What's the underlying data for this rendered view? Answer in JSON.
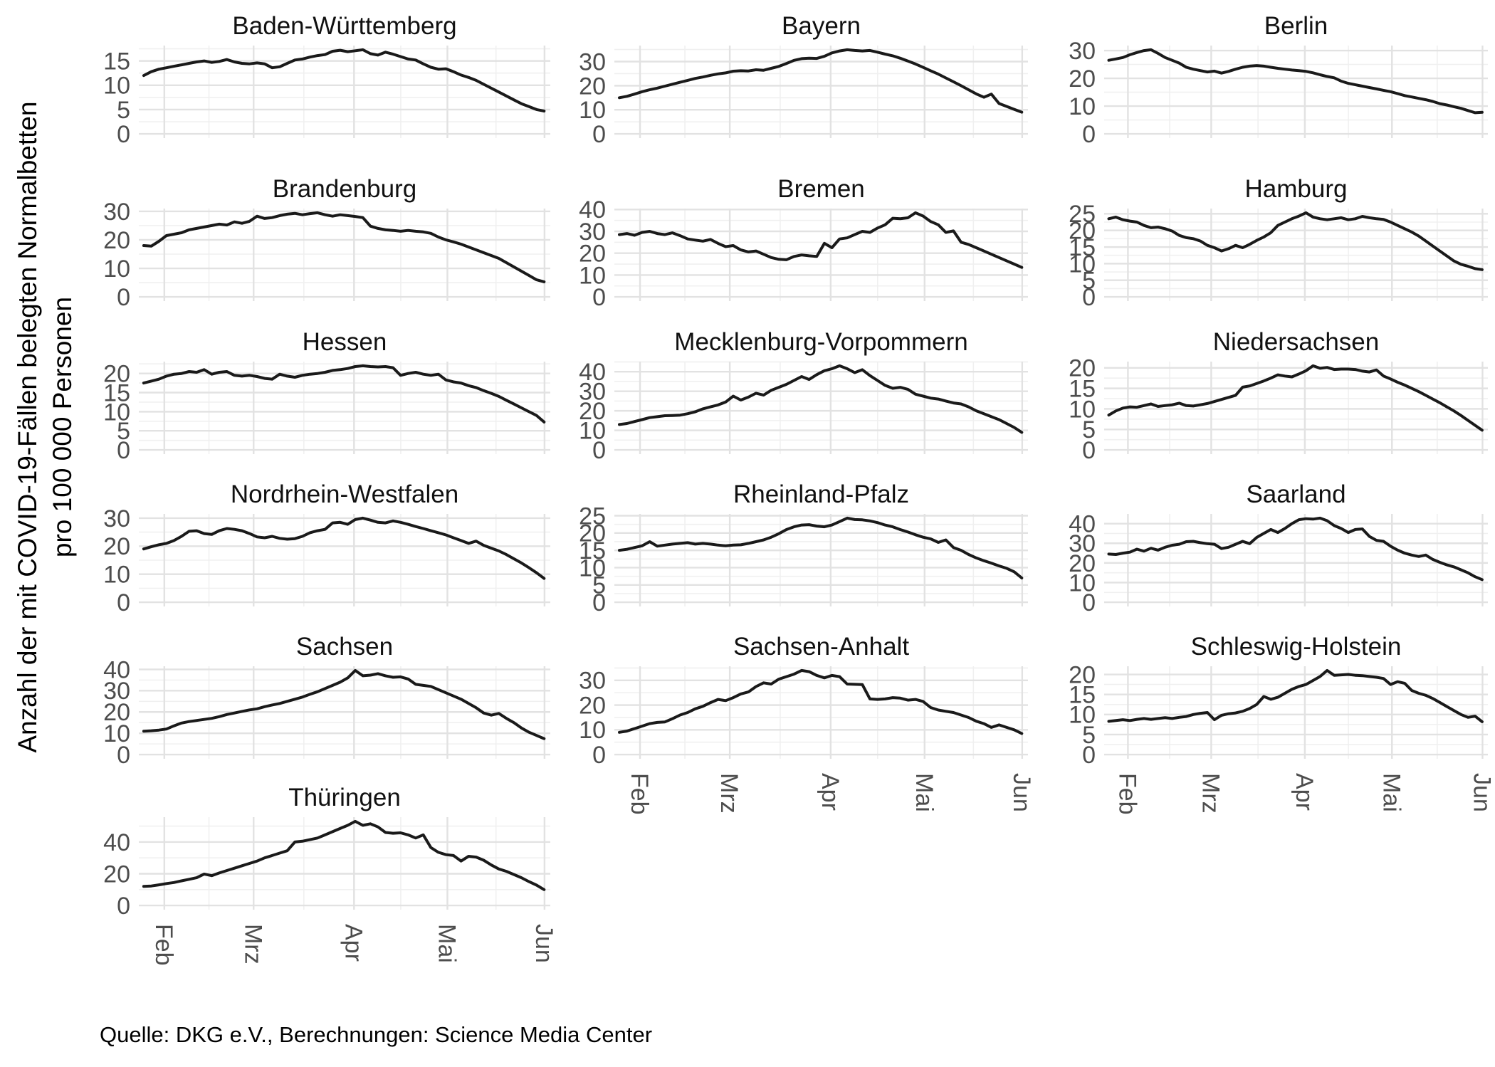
{
  "y_axis_label_line1": "Anzahl der mit COVID-19-Fällen belegten Normalbetten",
  "y_axis_label_line2": "pro 100 000 Personen",
  "caption": "Quelle: DKG e.V., Berechnungen: Science Media Center",
  "colors": {
    "line": "#1a1a1a",
    "grid_major": "#e2e2e2",
    "grid_minor": "#f0f0f0",
    "tick_text": "#4d4d4d",
    "title_text": "#111111",
    "background": "#ffffff"
  },
  "chart_data": {
    "type": "line",
    "title": "",
    "xlabel": "",
    "ylabel": "Anzahl der mit COVID-19-Fällen belegten Normalbetten pro 100 000 Personen",
    "x_tick_labels": [
      "Feb",
      "Mrz",
      "Apr",
      "Mai",
      "Jun"
    ],
    "grid": true,
    "legend": "none",
    "facets": [
      {
        "title": "Baden-Württemberg",
        "col": 0,
        "row": 0,
        "y_ticks": [
          0,
          5,
          10,
          15
        ],
        "show_x_axis": false,
        "values": [
          12.0,
          12.8,
          13.3,
          13.6,
          13.9,
          14.2,
          14.5,
          14.8,
          15.0,
          14.7,
          14.9,
          15.3,
          14.8,
          14.5,
          14.4,
          14.6,
          14.4,
          13.6,
          13.8,
          14.5,
          15.2,
          15.4,
          15.8,
          16.1,
          16.3,
          17.0,
          17.2,
          16.9,
          17.1,
          17.3,
          16.5,
          16.2,
          16.8,
          16.4,
          15.9,
          15.4,
          15.2,
          14.4,
          13.7,
          13.3,
          13.4,
          12.8,
          12.1,
          11.6,
          11.0,
          10.2,
          9.4,
          8.6,
          7.8,
          7.0,
          6.2,
          5.6,
          5.0,
          4.7
        ]
      },
      {
        "title": "Bayern",
        "col": 1,
        "row": 0,
        "y_ticks": [
          0,
          10,
          20,
          30
        ],
        "show_x_axis": false,
        "values": [
          15.0,
          15.6,
          16.5,
          17.5,
          18.3,
          19.0,
          19.8,
          20.6,
          21.4,
          22.2,
          23.0,
          23.6,
          24.3,
          24.9,
          25.3,
          26.0,
          26.2,
          26.1,
          26.6,
          26.4,
          27.2,
          28.0,
          29.2,
          30.5,
          31.2,
          31.4,
          31.3,
          32.2,
          33.6,
          34.4,
          34.9,
          34.6,
          34.4,
          34.6,
          33.9,
          33.1,
          32.4,
          31.4,
          30.2,
          29.0,
          27.6,
          26.2,
          24.8,
          23.2,
          21.6,
          20.0,
          18.3,
          16.6,
          15.2,
          16.5,
          12.6,
          11.4,
          10.2,
          9.0
        ]
      },
      {
        "title": "Berlin",
        "col": 2,
        "row": 0,
        "y_ticks": [
          0,
          10,
          20,
          30
        ],
        "show_x_axis": false,
        "values": [
          26.5,
          27.0,
          27.5,
          28.5,
          29.3,
          30.0,
          30.3,
          29.0,
          27.5,
          26.5,
          25.5,
          24.0,
          23.3,
          22.8,
          22.3,
          22.6,
          21.9,
          22.5,
          23.3,
          24.0,
          24.4,
          24.6,
          24.4,
          24.0,
          23.6,
          23.3,
          23.0,
          22.8,
          22.5,
          22.0,
          21.3,
          20.7,
          20.2,
          19.0,
          18.2,
          17.7,
          17.2,
          16.7,
          16.2,
          15.7,
          15.2,
          14.5,
          13.8,
          13.3,
          12.8,
          12.3,
          11.7,
          10.9,
          10.4,
          9.8,
          9.2,
          8.4,
          7.6,
          7.8
        ]
      },
      {
        "title": "Brandenburg",
        "col": 0,
        "row": 1,
        "y_ticks": [
          0,
          10,
          20,
          30
        ],
        "show_x_axis": false,
        "values": [
          18.0,
          17.8,
          19.5,
          21.5,
          22.0,
          22.5,
          23.5,
          24.0,
          24.5,
          25.0,
          25.5,
          25.2,
          26.3,
          25.8,
          26.5,
          28.3,
          27.5,
          27.8,
          28.5,
          29.0,
          29.3,
          28.8,
          29.2,
          29.5,
          28.8,
          28.3,
          28.8,
          28.5,
          28.2,
          27.8,
          24.8,
          24.0,
          23.5,
          23.3,
          23.0,
          23.3,
          23.0,
          22.8,
          22.3,
          21.0,
          20.0,
          19.3,
          18.5,
          17.5,
          16.5,
          15.5,
          14.5,
          13.5,
          12.0,
          10.5,
          9.0,
          7.5,
          6.0,
          5.3
        ]
      },
      {
        "title": "Bremen",
        "col": 1,
        "row": 1,
        "y_ticks": [
          0,
          10,
          20,
          30,
          40
        ],
        "show_x_axis": false,
        "values": [
          28.5,
          29.0,
          28.2,
          29.5,
          30.0,
          29.0,
          28.5,
          29.3,
          28.0,
          26.5,
          26.0,
          25.5,
          26.3,
          24.5,
          23.0,
          23.5,
          21.5,
          20.6,
          21.0,
          19.5,
          18.0,
          17.2,
          17.0,
          18.5,
          19.2,
          18.8,
          18.5,
          24.5,
          22.5,
          26.5,
          27.0,
          28.5,
          30.0,
          29.5,
          31.5,
          33.0,
          36.0,
          35.8,
          36.2,
          38.5,
          37.0,
          34.5,
          33.0,
          29.5,
          30.2,
          25.0,
          24.0,
          22.5,
          21.0,
          19.5,
          18.0,
          16.5,
          15.0,
          13.5
        ]
      },
      {
        "title": "Hamburg",
        "col": 2,
        "row": 1,
        "y_ticks": [
          0,
          5,
          10,
          15,
          20,
          25
        ],
        "show_x_axis": false,
        "values": [
          23.5,
          24.0,
          23.2,
          22.8,
          22.5,
          21.5,
          20.8,
          21.0,
          20.5,
          19.8,
          18.5,
          17.8,
          17.5,
          16.8,
          15.5,
          14.8,
          13.8,
          14.5,
          15.5,
          14.8,
          15.8,
          17.0,
          18.0,
          19.3,
          21.5,
          22.5,
          23.5,
          24.3,
          25.3,
          24.0,
          23.5,
          23.2,
          23.5,
          23.8,
          23.2,
          23.5,
          24.2,
          23.8,
          23.5,
          23.3,
          22.5,
          21.5,
          20.5,
          19.5,
          18.3,
          16.8,
          15.3,
          13.8,
          12.3,
          10.8,
          9.8,
          9.2,
          8.5,
          8.2
        ]
      },
      {
        "title": "Hessen",
        "col": 0,
        "row": 2,
        "y_ticks": [
          0,
          5,
          10,
          15,
          20
        ],
        "show_x_axis": false,
        "values": [
          17.5,
          18.0,
          18.5,
          19.3,
          19.8,
          20.0,
          20.5,
          20.3,
          21.0,
          19.8,
          20.3,
          20.5,
          19.5,
          19.3,
          19.5,
          19.2,
          18.7,
          18.5,
          19.8,
          19.3,
          19.0,
          19.5,
          19.8,
          20.0,
          20.3,
          20.8,
          21.0,
          21.3,
          21.8,
          22.0,
          21.8,
          21.7,
          21.8,
          21.5,
          19.5,
          20.0,
          20.3,
          19.8,
          19.5,
          19.8,
          18.3,
          17.8,
          17.5,
          16.8,
          16.3,
          15.5,
          14.8,
          14.0,
          13.0,
          12.0,
          11.0,
          10.0,
          9.0,
          7.3
        ]
      },
      {
        "title": "Mecklenburg-Vorpommern",
        "col": 1,
        "row": 2,
        "y_ticks": [
          0,
          10,
          20,
          30,
          40
        ],
        "show_x_axis": false,
        "values": [
          13.0,
          13.5,
          14.5,
          15.5,
          16.5,
          17.0,
          17.5,
          17.6,
          17.8,
          18.5,
          19.5,
          21.0,
          22.0,
          23.0,
          24.5,
          27.5,
          25.5,
          27.0,
          29.0,
          28.0,
          30.5,
          32.0,
          33.5,
          35.5,
          37.5,
          36.0,
          38.5,
          40.5,
          41.5,
          43.0,
          41.5,
          39.5,
          41.0,
          38.0,
          35.5,
          33.0,
          31.5,
          32.0,
          31.0,
          28.5,
          27.5,
          26.5,
          26.0,
          25.0,
          24.0,
          23.5,
          22.0,
          20.0,
          18.5,
          17.0,
          15.5,
          13.5,
          11.5,
          9.0
        ]
      },
      {
        "title": "Niedersachsen",
        "col": 2,
        "row": 2,
        "y_ticks": [
          0,
          5,
          10,
          15,
          20
        ],
        "show_x_axis": false,
        "values": [
          8.5,
          9.5,
          10.2,
          10.5,
          10.4,
          10.8,
          11.2,
          10.6,
          10.8,
          11.0,
          11.4,
          10.8,
          10.7,
          11.0,
          11.3,
          11.8,
          12.3,
          12.8,
          13.3,
          15.3,
          15.6,
          16.2,
          16.8,
          17.5,
          18.3,
          18.0,
          17.8,
          18.5,
          19.3,
          20.5,
          19.9,
          20.1,
          19.6,
          19.7,
          19.7,
          19.6,
          19.2,
          19.0,
          19.5,
          18.0,
          17.3,
          16.5,
          15.8,
          15.0,
          14.2,
          13.3,
          12.4,
          11.5,
          10.5,
          9.5,
          8.4,
          7.2,
          6.0,
          4.8
        ]
      },
      {
        "title": "Nordrhein-Westfalen",
        "col": 0,
        "row": 3,
        "y_ticks": [
          0,
          10,
          20,
          30
        ],
        "show_x_axis": false,
        "values": [
          19.0,
          19.8,
          20.5,
          21.0,
          22.0,
          23.5,
          25.3,
          25.5,
          24.5,
          24.2,
          25.5,
          26.3,
          26.0,
          25.5,
          24.5,
          23.3,
          23.0,
          23.5,
          22.8,
          22.5,
          22.7,
          23.5,
          24.8,
          25.5,
          26.0,
          28.3,
          28.5,
          27.8,
          29.5,
          30.0,
          29.3,
          28.5,
          28.3,
          29.0,
          28.5,
          27.8,
          27.0,
          26.3,
          25.5,
          24.8,
          24.0,
          23.0,
          22.0,
          21.0,
          21.8,
          20.3,
          19.3,
          18.3,
          17.0,
          15.5,
          14.0,
          12.3,
          10.5,
          8.5
        ]
      },
      {
        "title": "Rheinland-Pfalz",
        "col": 1,
        "row": 3,
        "y_ticks": [
          0,
          5,
          10,
          15,
          20,
          25
        ],
        "show_x_axis": false,
        "values": [
          15.0,
          15.3,
          15.8,
          16.3,
          17.5,
          16.2,
          16.5,
          16.8,
          17.0,
          17.2,
          16.8,
          17.0,
          16.8,
          16.5,
          16.3,
          16.5,
          16.6,
          17.0,
          17.5,
          18.0,
          18.8,
          19.8,
          21.0,
          21.8,
          22.3,
          22.4,
          22.0,
          21.8,
          22.3,
          23.3,
          24.3,
          23.9,
          23.8,
          23.5,
          23.0,
          22.3,
          21.8,
          21.0,
          20.3,
          19.5,
          18.8,
          18.3,
          17.3,
          18.0,
          15.8,
          15.0,
          13.8,
          12.8,
          12.0,
          11.3,
          10.5,
          9.8,
          8.8,
          7.0
        ]
      },
      {
        "title": "Saarland",
        "col": 2,
        "row": 3,
        "y_ticks": [
          0,
          10,
          20,
          30,
          40
        ],
        "show_x_axis": false,
        "values": [
          24.5,
          24.3,
          25.0,
          25.5,
          27.0,
          26.0,
          27.5,
          26.5,
          28.0,
          29.0,
          29.5,
          30.8,
          31.0,
          30.3,
          29.8,
          29.5,
          27.3,
          28.0,
          29.5,
          31.0,
          29.8,
          33.0,
          35.0,
          37.0,
          35.5,
          37.5,
          40.0,
          42.0,
          42.5,
          42.3,
          42.8,
          41.5,
          39.0,
          37.5,
          35.5,
          37.0,
          37.3,
          33.5,
          31.5,
          31.0,
          28.5,
          26.5,
          25.0,
          24.0,
          23.3,
          24.0,
          21.8,
          20.3,
          19.0,
          18.0,
          16.5,
          15.0,
          13.0,
          11.5
        ]
      },
      {
        "title": "Sachsen",
        "col": 0,
        "row": 4,
        "y_ticks": [
          0,
          10,
          20,
          30,
          40
        ],
        "show_x_axis": false,
        "values": [
          11.0,
          11.2,
          11.5,
          12.0,
          13.5,
          14.8,
          15.5,
          16.0,
          16.5,
          17.0,
          17.8,
          18.8,
          19.5,
          20.3,
          21.0,
          21.5,
          22.5,
          23.3,
          24.0,
          25.0,
          26.0,
          27.0,
          28.3,
          29.5,
          31.0,
          32.5,
          34.0,
          36.0,
          39.5,
          37.0,
          37.3,
          38.0,
          37.0,
          36.3,
          36.5,
          35.5,
          33.0,
          32.5,
          32.0,
          30.5,
          29.0,
          27.5,
          26.0,
          24.0,
          22.0,
          19.5,
          18.5,
          19.3,
          17.0,
          15.0,
          12.5,
          10.5,
          9.0,
          7.5
        ]
      },
      {
        "title": "Sachsen-Anhalt",
        "col": 1,
        "row": 4,
        "y_ticks": [
          0,
          10,
          20,
          30
        ],
        "show_x_axis": true,
        "values": [
          9.0,
          9.5,
          10.5,
          11.5,
          12.5,
          13.0,
          13.2,
          14.5,
          16.0,
          17.0,
          18.5,
          19.5,
          21.0,
          22.3,
          21.8,
          23.0,
          24.5,
          25.3,
          27.5,
          29.0,
          28.5,
          30.5,
          31.5,
          32.5,
          34.0,
          33.5,
          32.0,
          31.0,
          32.0,
          31.5,
          28.5,
          28.4,
          28.3,
          22.5,
          22.3,
          22.5,
          23.0,
          22.8,
          22.0,
          22.3,
          21.5,
          19.0,
          18.0,
          17.5,
          17.0,
          16.0,
          15.0,
          13.5,
          12.5,
          11.0,
          12.0,
          11.0,
          10.0,
          8.5
        ]
      },
      {
        "title": "Schleswig-Holstein",
        "col": 2,
        "row": 4,
        "y_ticks": [
          0,
          5,
          10,
          15,
          20
        ],
        "show_x_axis": true,
        "values": [
          8.3,
          8.5,
          8.7,
          8.5,
          8.8,
          9.0,
          8.8,
          9.0,
          9.2,
          9.0,
          9.3,
          9.5,
          10.0,
          10.3,
          10.5,
          8.7,
          9.8,
          10.2,
          10.4,
          10.8,
          11.5,
          12.5,
          14.5,
          13.8,
          14.3,
          15.3,
          16.3,
          17.0,
          17.5,
          18.5,
          19.5,
          21.0,
          19.8,
          19.9,
          20.0,
          19.8,
          19.7,
          19.5,
          19.3,
          19.0,
          17.5,
          18.2,
          17.8,
          16.0,
          15.3,
          14.8,
          14.0,
          13.0,
          12.0,
          11.0,
          10.0,
          9.3,
          9.6,
          8.2
        ]
      },
      {
        "title": "Thüringen",
        "col": 0,
        "row": 5,
        "y_ticks": [
          0,
          20,
          40
        ],
        "show_x_axis": true,
        "values": [
          12.0,
          12.3,
          13.0,
          13.8,
          14.5,
          15.5,
          16.5,
          17.5,
          19.8,
          18.8,
          20.5,
          22.0,
          23.5,
          25.0,
          26.5,
          28.0,
          30.0,
          31.5,
          33.0,
          34.5,
          40.0,
          40.5,
          41.5,
          42.5,
          44.5,
          46.5,
          48.5,
          50.5,
          53.0,
          50.5,
          51.5,
          49.5,
          46.0,
          45.5,
          45.8,
          44.5,
          42.5,
          44.5,
          36.5,
          33.5,
          32.0,
          31.5,
          28.0,
          31.0,
          30.5,
          28.5,
          25.5,
          23.0,
          21.5,
          19.5,
          17.5,
          15.0,
          12.8,
          10.0
        ]
      }
    ]
  }
}
